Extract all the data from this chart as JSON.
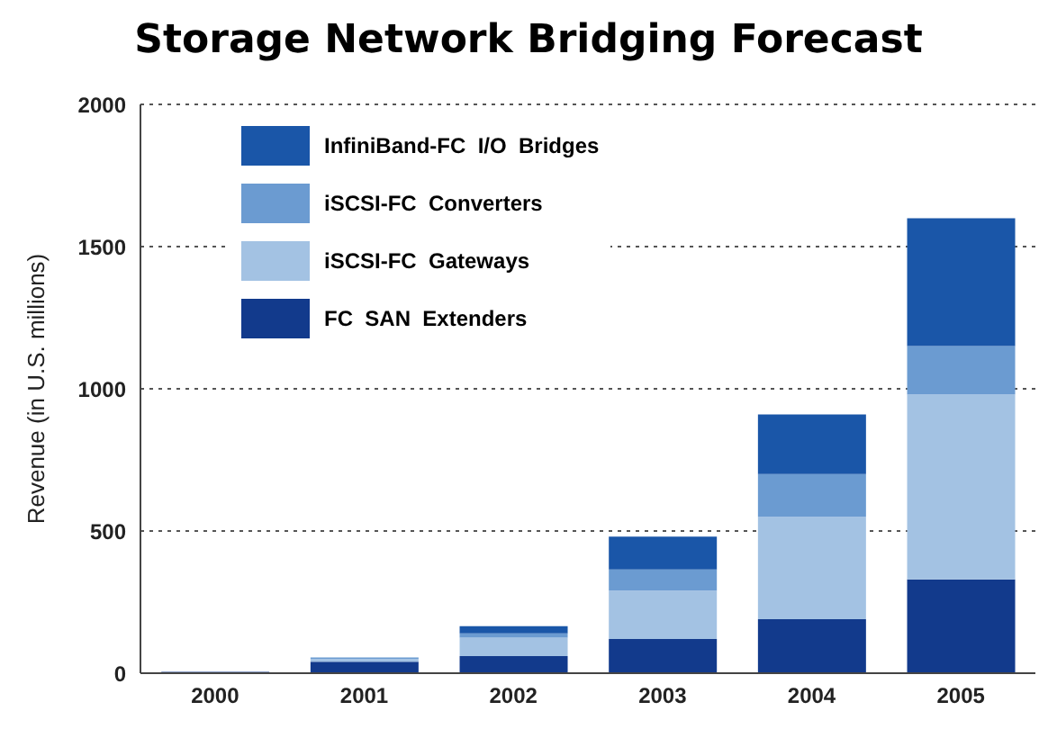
{
  "chart_data": {
    "type": "bar",
    "title": "Storage Network Bridging Forecast",
    "ylabel": "Revenue (in U.S. millions)",
    "categories": [
      "2000",
      "2001",
      "2002",
      "2003",
      "2004",
      "2005"
    ],
    "stacked": true,
    "series": [
      {
        "name": "FC  SAN  Extenders",
        "color": "#123a8c",
        "values": [
          5,
          40,
          60,
          120,
          190,
          330
        ]
      },
      {
        "name": "iSCSI-FC  Gateways",
        "color": "#a3c2e3",
        "values": [
          0,
          10,
          65,
          170,
          360,
          650
        ]
      },
      {
        "name": "iSCSI-FC  Converters",
        "color": "#6b9bd1",
        "values": [
          0,
          5,
          15,
          75,
          150,
          170
        ]
      },
      {
        "name": "InfiniBand-FC  I/O  Bridges",
        "color": "#1a56a8",
        "values": [
          0,
          0,
          25,
          115,
          210,
          450
        ]
      }
    ],
    "ylim": [
      0,
      2000
    ],
    "yticks": [
      0,
      500,
      1000,
      1500,
      2000
    ],
    "grid": "y",
    "legend": "top left"
  }
}
